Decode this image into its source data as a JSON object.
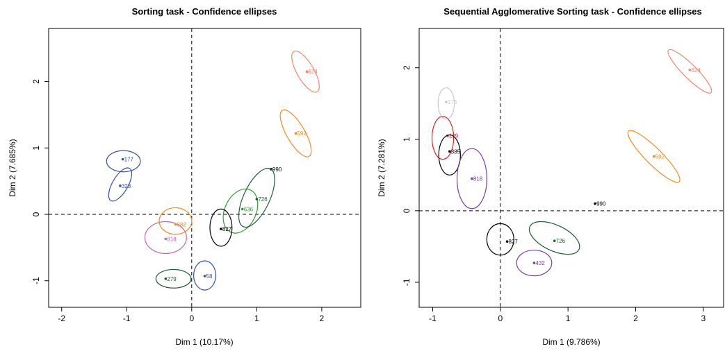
{
  "chart_data": [
    {
      "type": "scatter",
      "title": "Sorting task - Confidence ellipses",
      "xlabel": "Dim 1 (10.17%)",
      "ylabel": "Dim 2 (7.685%)",
      "xlim": [
        -2.2,
        2.6
      ],
      "ylim": [
        -1.4,
        2.8
      ],
      "xticks": [
        -2,
        -1,
        0,
        1,
        2
      ],
      "yticks": [
        -1,
        0,
        1,
        2
      ],
      "grid": false,
      "reference_lines": {
        "x": 0,
        "y": 0
      },
      "points": [
        {
          "label": "624",
          "x": 1.77,
          "y": 2.15,
          "color": "#f4866c",
          "ellipse": {
            "cx": 1.75,
            "cy": 2.15,
            "rx": 0.13,
            "ry": 0.35,
            "angle": -30
          }
        },
        {
          "label": "592",
          "x": 1.6,
          "y": 1.22,
          "color": "#f28c1d",
          "ellipse": {
            "cx": 1.6,
            "cy": 1.22,
            "rx": 0.14,
            "ry": 0.4,
            "angle": -30
          }
        },
        {
          "label": "990",
          "x": 1.22,
          "y": 0.68,
          "color": "#000000",
          "ellipse": null
        },
        {
          "label": "177",
          "x": -1.06,
          "y": 0.83,
          "color": "#3550a4",
          "ellipse": {
            "cx": -1.05,
            "cy": 0.8,
            "rx": 0.26,
            "ry": 0.16,
            "angle": 0
          }
        },
        {
          "label": "323",
          "x": -1.1,
          "y": 0.43,
          "color": "#3550a4",
          "ellipse": {
            "cx": -1.1,
            "cy": 0.45,
            "rx": 0.12,
            "ry": 0.28,
            "angle": 30
          }
        },
        {
          "label": "818",
          "x": -0.4,
          "y": -0.37,
          "color": "#c266b0",
          "ellipse": {
            "cx": -0.4,
            "cy": -0.35,
            "rx": 0.32,
            "ry": 0.24,
            "angle": 0
          }
        },
        {
          "label": "382",
          "x": -0.25,
          "y": -0.15,
          "color": "#f28c1d",
          "ellipse": {
            "cx": -0.25,
            "cy": -0.1,
            "rx": 0.25,
            "ry": 0.2,
            "angle": 0
          }
        },
        {
          "label": "636",
          "x": 0.78,
          "y": 0.08,
          "color": "#2ca02c",
          "ellipse": {
            "cx": 0.75,
            "cy": 0.05,
            "rx": 0.24,
            "ry": 0.35,
            "angle": 25
          }
        },
        {
          "label": "726",
          "x": 1.0,
          "y": 0.23,
          "color": "#1a5c35",
          "ellipse": {
            "cx": 1.0,
            "cy": 0.25,
            "rx": 0.2,
            "ry": 0.48,
            "angle": 25
          }
        },
        {
          "label": "827",
          "x": 0.45,
          "y": -0.22,
          "color": "#000000",
          "ellipse": {
            "cx": 0.45,
            "cy": -0.2,
            "rx": 0.17,
            "ry": 0.28,
            "angle": 0
          }
        },
        {
          "label": "58",
          "x": 0.2,
          "y": -0.93,
          "color": "#3550a4",
          "ellipse": {
            "cx": 0.2,
            "cy": -0.92,
            "rx": 0.17,
            "ry": 0.22,
            "angle": 0
          }
        },
        {
          "label": "279",
          "x": -0.4,
          "y": -0.97,
          "color": "#1a5c35",
          "ellipse": {
            "cx": -0.28,
            "cy": -0.97,
            "rx": 0.27,
            "ry": 0.14,
            "angle": 0
          }
        }
      ]
    },
    {
      "type": "scatter",
      "title": "Sequential Agglomerative Sorting task - Confidence ellipses",
      "xlabel": "Dim 1 (9.786%)",
      "ylabel": "Dim 2 (7.281%)",
      "xlim": [
        -1.2,
        3.3
      ],
      "ylim": [
        -1.35,
        2.55
      ],
      "xticks": [
        -1,
        0,
        1,
        2,
        3
      ],
      "yticks": [
        -1,
        0,
        1,
        2
      ],
      "grid": false,
      "reference_lines": {
        "x": 0,
        "y": 0
      },
      "points": [
        {
          "label": "624",
          "x": 2.8,
          "y": 1.97,
          "color": "#f4866c",
          "ellipse": {
            "cx": 2.8,
            "cy": 1.95,
            "rx": 0.1,
            "ry": 0.42,
            "angle": -45
          }
        },
        {
          "label": "592",
          "x": 2.27,
          "y": 0.76,
          "color": "#f28c1d",
          "ellipse": {
            "cx": 2.27,
            "cy": 0.76,
            "rx": 0.12,
            "ry": 0.5,
            "angle": -45
          }
        },
        {
          "label": "990",
          "x": 1.4,
          "y": 0.1,
          "color": "#000000",
          "ellipse": null
        },
        {
          "label": "129",
          "x": -0.78,
          "y": 1.05,
          "color": "#d62728",
          "ellipse": {
            "cx": -0.85,
            "cy": 1.02,
            "rx": 0.16,
            "ry": 0.3,
            "angle": 0
          }
        },
        {
          "label": "385",
          "x": -0.75,
          "y": 0.83,
          "color": "#000000",
          "ellipse": {
            "cx": -0.75,
            "cy": 0.78,
            "rx": 0.16,
            "ry": 0.28,
            "angle": 0
          }
        },
        {
          "label": "818",
          "x": -0.42,
          "y": 0.45,
          "color": "#7a3d9b",
          "ellipse": {
            "cx": -0.42,
            "cy": 0.45,
            "rx": 0.22,
            "ry": 0.42,
            "angle": 0
          }
        },
        {
          "label": "176",
          "x": -0.8,
          "y": 1.52,
          "color": "#c8c8c8",
          "ellipse": {
            "cx": -0.8,
            "cy": 1.5,
            "rx": 0.12,
            "ry": 0.22,
            "angle": 0
          }
        },
        {
          "label": "827",
          "x": 0.1,
          "y": -0.43,
          "color": "#000000",
          "ellipse": {
            "cx": 0.0,
            "cy": -0.4,
            "rx": 0.2,
            "ry": 0.22,
            "angle": 0
          }
        },
        {
          "label": "432",
          "x": 0.5,
          "y": -0.73,
          "color": "#7a3d9b",
          "ellipse": {
            "cx": 0.5,
            "cy": -0.73,
            "rx": 0.26,
            "ry": 0.18,
            "angle": 0
          }
        },
        {
          "label": "726",
          "x": 0.8,
          "y": -0.42,
          "color": "#1a5c35",
          "ellipse": {
            "cx": 0.8,
            "cy": -0.38,
            "rx": 0.4,
            "ry": 0.18,
            "angle": 25
          }
        }
      ]
    }
  ]
}
